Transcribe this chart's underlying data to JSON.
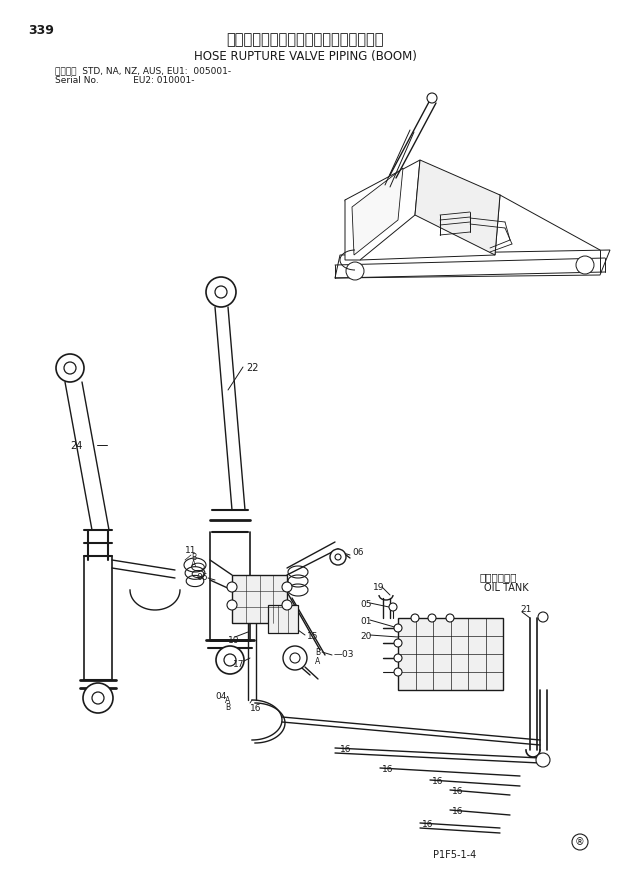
{
  "page_number": "339",
  "title_jp": "ホースラプチャーバルブ配管（ブーム）",
  "title_en": "HOSE RUPTURE VALVE PIPING (BOOM)",
  "serial_line1": "適用号機  STD, NA, NZ, AUS, EU1:  005001-",
  "serial_line2": "Serial No.            EU2: 010001-",
  "figure_code": "P1F5-1-4",
  "copyright_symbol": "®",
  "oil_tank_jp": "オイルタンク",
  "oil_tank_en": "OIL TANK",
  "bg_color": "#ffffff",
  "line_color": "#1a1a1a",
  "text_color": "#1a1a1a"
}
